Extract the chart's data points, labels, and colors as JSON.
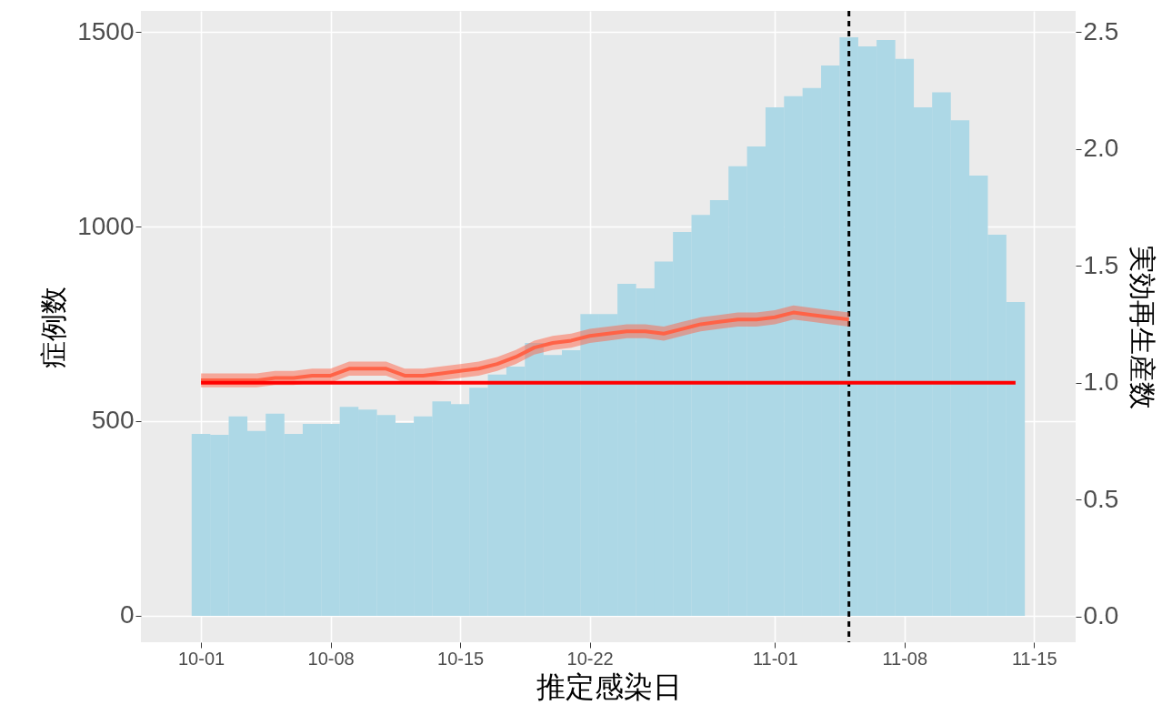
{
  "chart_data": {
    "type": "bar",
    "xlabel": "推定感染日",
    "ylabel": "症例数",
    "y2label": "実効再生産数",
    "grid": true,
    "xlim": [
      "--09-28",
      "--11-17"
    ],
    "xticks": [
      {
        "value": "--10-01",
        "label": "10-01"
      },
      {
        "value": "--10-08",
        "label": "10-08"
      },
      {
        "value": "--10-15",
        "label": "10-15"
      },
      {
        "value": "--10-22",
        "label": "10-22"
      },
      {
        "value": "--11-01",
        "label": "11-01"
      },
      {
        "value": "--11-08",
        "label": "11-08"
      },
      {
        "value": "--11-15",
        "label": "11-15"
      }
    ],
    "ylim": [
      -68,
      1554
    ],
    "yticks": [
      0,
      500,
      1000,
      1500
    ],
    "y2lim": [
      -0.11,
      2.59
    ],
    "y2ticks": [
      {
        "value": 0,
        "label": "0.0"
      },
      {
        "value": 0.5,
        "label": "0.5"
      },
      {
        "value": 1,
        "label": "1.0"
      },
      {
        "value": 1.5,
        "label": "1.5"
      },
      {
        "value": 2,
        "label": "2.0"
      },
      {
        "value": 2.5,
        "label": "2.5"
      }
    ],
    "series": [
      {
        "color": "#add8e6",
        "x": [
          "--10-01",
          "--10-02",
          "--10-03",
          "--10-04",
          "--10-05",
          "--10-06",
          "--10-07",
          "--10-08",
          "--10-09",
          "--10-10",
          "--10-11",
          "--10-12",
          "--10-13",
          "--10-14",
          "--10-15",
          "--10-16",
          "--10-17",
          "--10-18",
          "--10-19",
          "--10-20",
          "--10-21",
          "--10-22",
          "--10-23",
          "--10-24",
          "--10-25",
          "--10-26",
          "--10-27",
          "--10-28",
          "--10-29",
          "--10-30",
          "--10-31",
          "--11-01",
          "--11-02",
          "--11-03",
          "--11-04",
          "--11-05",
          "--11-06",
          "--11-07",
          "--11-08",
          "--11-09",
          "--11-10",
          "--11-11",
          "--11-12",
          "--11-13",
          "--11-14"
        ],
        "values": [
          467,
          465,
          512,
          475,
          519,
          467,
          493,
          493,
          537,
          530,
          516,
          495,
          512,
          551,
          544,
          586,
          620,
          640,
          701,
          670,
          682,
          775,
          775,
          853,
          841,
          910,
          986,
          1030,
          1068,
          1155,
          1206,
          1306,
          1335,
          1356,
          1414,
          1486,
          1463,
          1479,
          1431,
          1306,
          1345,
          1273,
          1131,
          979,
          806
        ]
      },
      {
        "type": "line",
        "axis": "y2",
        "color": "#ff6347",
        "x": [
          "--10-01",
          "--10-02",
          "--10-03",
          "--10-04",
          "--10-05",
          "--10-06",
          "--10-07",
          "--10-08",
          "--10-09",
          "--10-10",
          "--10-11",
          "--10-12",
          "--10-13",
          "--10-14",
          "--10-15",
          "--10-16",
          "--10-17",
          "--10-18",
          "--10-19",
          "--10-20",
          "--10-21",
          "--10-22",
          "--10-23",
          "--10-24",
          "--10-25",
          "--10-26",
          "--10-27",
          "--10-28",
          "--10-29",
          "--10-30",
          "--10-31",
          "--11-01",
          "--11-02",
          "--11-03",
          "--11-04",
          "--11-05"
        ],
        "values": [
          1.01,
          1.01,
          1.01,
          1.01,
          1.02,
          1.02,
          1.03,
          1.03,
          1.06,
          1.06,
          1.06,
          1.03,
          1.03,
          1.04,
          1.05,
          1.06,
          1.08,
          1.11,
          1.15,
          1.17,
          1.18,
          1.2,
          1.21,
          1.22,
          1.22,
          1.21,
          1.23,
          1.25,
          1.26,
          1.27,
          1.27,
          1.28,
          1.3,
          1.29,
          1.28,
          1.27
        ],
        "lower": [
          0.98,
          0.98,
          0.98,
          0.98,
          0.99,
          0.99,
          1.0,
          1.0,
          1.03,
          1.03,
          1.03,
          1.0,
          1.0,
          1.01,
          1.02,
          1.03,
          1.05,
          1.08,
          1.12,
          1.14,
          1.15,
          1.17,
          1.18,
          1.19,
          1.19,
          1.18,
          1.2,
          1.22,
          1.23,
          1.24,
          1.24,
          1.25,
          1.27,
          1.26,
          1.25,
          1.24
        ],
        "upper": [
          1.04,
          1.04,
          1.04,
          1.04,
          1.05,
          1.05,
          1.06,
          1.06,
          1.09,
          1.09,
          1.09,
          1.06,
          1.06,
          1.07,
          1.08,
          1.09,
          1.11,
          1.14,
          1.18,
          1.2,
          1.21,
          1.23,
          1.24,
          1.25,
          1.25,
          1.24,
          1.26,
          1.28,
          1.29,
          1.3,
          1.3,
          1.31,
          1.33,
          1.32,
          1.31,
          1.3
        ]
      },
      {
        "type": "line",
        "axis": "y2",
        "color": "#ff0000",
        "x": [
          "--10-01",
          "--11-14"
        ],
        "values": [
          1,
          1
        ]
      }
    ],
    "ref_lines": [
      {
        "axis": "x",
        "value": "--11-05",
        "color": "#000000",
        "line_style": "dashed"
      }
    ]
  }
}
